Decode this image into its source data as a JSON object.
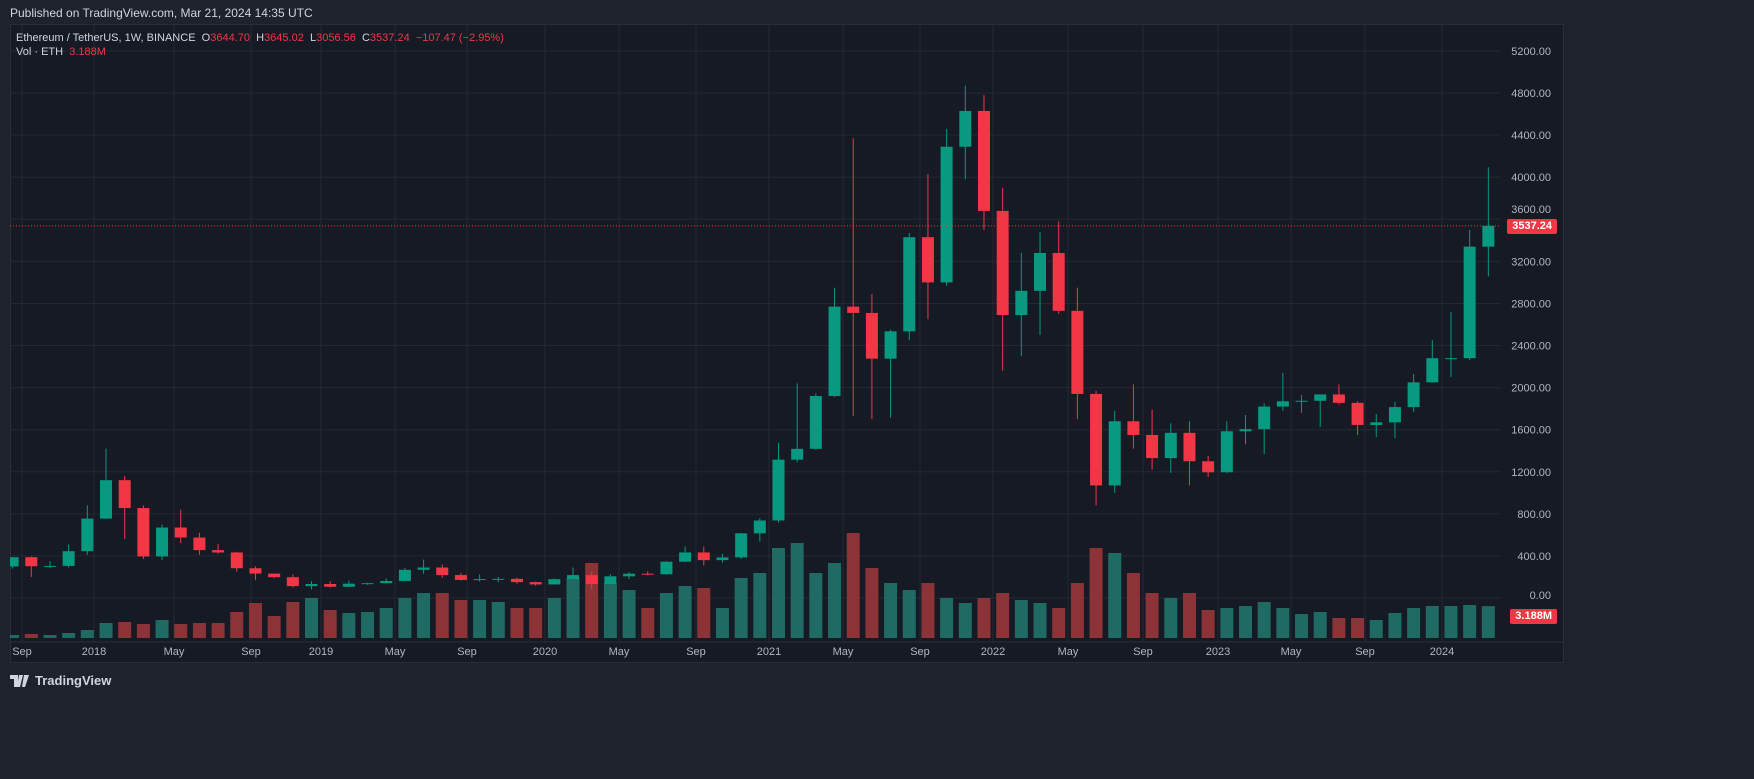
{
  "published": "Published on TradingView.com, Mar 21, 2024 14:35 UTC",
  "legend": {
    "symbol": "Ethereum / TetherUS, 1W, BINANCE",
    "o_label": "O",
    "o": "3644.70",
    "h_label": "H",
    "h": "3645.02",
    "l_label": "L",
    "l": "3056.56",
    "c_label": "C",
    "c": "3537.24",
    "change": "−107.47 (−2.95%)",
    "vol_label": "Vol · ETH",
    "vol": "3.188M"
  },
  "price_tag": "3537.24",
  "volume_tag": "3.188M",
  "footer": {
    "brand": "TradingView"
  },
  "colors": {
    "up": "#089981",
    "down": "#f23645",
    "up_vol": "#1f6b63",
    "down_vol": "#8c3338",
    "grid": "#242833",
    "background": "#161a25"
  },
  "chart_data": {
    "type": "candlestick",
    "interval_note": "approximate monthly aggregation of weekly candles",
    "y_ticks": [
      "5200.00",
      "4800.00",
      "4400.00",
      "4000.00",
      "3600.00",
      "3200.00",
      "2800.00",
      "2400.00",
      "2000.00",
      "1600.00",
      "1200.00",
      "800.00",
      "400.00",
      "0.00"
    ],
    "ylim": [
      0,
      5200
    ],
    "x_ticks": [
      "Sep",
      "2018",
      "May",
      "Sep",
      "2019",
      "May",
      "Sep",
      "2020",
      "May",
      "Sep",
      "2021",
      "May",
      "Sep",
      "2022",
      "May",
      "Sep",
      "2023",
      "May",
      "Sep",
      "2024"
    ],
    "grid": true,
    "last_price": 3537.24,
    "months": [
      "2017-08",
      "2017-09",
      "2017-10",
      "2017-11",
      "2017-12",
      "2018-01",
      "2018-02",
      "2018-03",
      "2018-04",
      "2018-05",
      "2018-06",
      "2018-07",
      "2018-08",
      "2018-09",
      "2018-10",
      "2018-11",
      "2018-12",
      "2019-01",
      "2019-02",
      "2019-03",
      "2019-04",
      "2019-05",
      "2019-06",
      "2019-07",
      "2019-08",
      "2019-09",
      "2019-10",
      "2019-11",
      "2019-12",
      "2020-01",
      "2020-02",
      "2020-03",
      "2020-04",
      "2020-05",
      "2020-06",
      "2020-07",
      "2020-08",
      "2020-09",
      "2020-10",
      "2020-11",
      "2020-12",
      "2021-01",
      "2021-02",
      "2021-03",
      "2021-04",
      "2021-05",
      "2021-06",
      "2021-07",
      "2021-08",
      "2021-09",
      "2021-10",
      "2021-11",
      "2021-12",
      "2022-01",
      "2022-02",
      "2022-03",
      "2022-04",
      "2022-05",
      "2022-06",
      "2022-07",
      "2022-08",
      "2022-09",
      "2022-10",
      "2022-11",
      "2022-12",
      "2023-01",
      "2023-02",
      "2023-03",
      "2023-04",
      "2023-05",
      "2023-06",
      "2023-07",
      "2023-08",
      "2023-09",
      "2023-10",
      "2023-11",
      "2023-12",
      "2024-01",
      "2024-02",
      "2024-03"
    ],
    "ohlc": [
      [
        300,
        390,
        280,
        388
      ],
      [
        388,
        395,
        200,
        302
      ],
      [
        302,
        350,
        285,
        305
      ],
      [
        305,
        510,
        290,
        445
      ],
      [
        445,
        880,
        410,
        755
      ],
      [
        755,
        1420,
        750,
        1120
      ],
      [
        1120,
        1160,
        560,
        855
      ],
      [
        855,
        880,
        370,
        395
      ],
      [
        395,
        700,
        360,
        670
      ],
      [
        670,
        840,
        520,
        575
      ],
      [
        575,
        620,
        410,
        455
      ],
      [
        455,
        515,
        420,
        433
      ],
      [
        433,
        440,
        250,
        283
      ],
      [
        283,
        300,
        170,
        232
      ],
      [
        232,
        235,
        190,
        198
      ],
      [
        198,
        225,
        100,
        113
      ],
      [
        113,
        160,
        82,
        133
      ],
      [
        133,
        160,
        100,
        107
      ],
      [
        107,
        165,
        102,
        136
      ],
      [
        136,
        145,
        125,
        141
      ],
      [
        141,
        185,
        140,
        162
      ],
      [
        162,
        285,
        160,
        268
      ],
      [
        268,
        365,
        230,
        290
      ],
      [
        290,
        320,
        190,
        218
      ],
      [
        218,
        240,
        165,
        172
      ],
      [
        172,
        225,
        155,
        180
      ],
      [
        180,
        200,
        150,
        182
      ],
      [
        182,
        195,
        135,
        151
      ],
      [
        151,
        155,
        117,
        129
      ],
      [
        129,
        185,
        127,
        179
      ],
      [
        179,
        290,
        180,
        218
      ],
      [
        218,
        250,
        86,
        133
      ],
      [
        133,
        227,
        130,
        206
      ],
      [
        206,
        245,
        180,
        231
      ],
      [
        231,
        255,
        215,
        226
      ],
      [
        226,
        350,
        220,
        345
      ],
      [
        345,
        490,
        340,
        433
      ],
      [
        433,
        490,
        310,
        360
      ],
      [
        360,
        420,
        335,
        386
      ],
      [
        386,
        620,
        370,
        615
      ],
      [
        615,
        760,
        535,
        737
      ],
      [
        737,
        1475,
        715,
        1315
      ],
      [
        1315,
        2040,
        1290,
        1418
      ],
      [
        1418,
        1945,
        1410,
        1920
      ],
      [
        1920,
        2950,
        1910,
        2770
      ],
      [
        2770,
        4370,
        1730,
        2710
      ],
      [
        2710,
        2890,
        1700,
        2275
      ],
      [
        2275,
        2550,
        1715,
        2535
      ],
      [
        2535,
        3470,
        2450,
        3430
      ],
      [
        3430,
        4030,
        2650,
        3000
      ],
      [
        3000,
        4460,
        2970,
        4290
      ],
      [
        4290,
        4870,
        3980,
        4630
      ],
      [
        4630,
        4780,
        3500,
        3680
      ],
      [
        3680,
        3900,
        2160,
        2690
      ],
      [
        2690,
        3280,
        2300,
        2920
      ],
      [
        2920,
        3480,
        2500,
        3280
      ],
      [
        3280,
        3580,
        2700,
        2730
      ],
      [
        2730,
        2950,
        1700,
        1940
      ],
      [
        1940,
        1970,
        880,
        1070
      ],
      [
        1070,
        1780,
        1000,
        1680
      ],
      [
        1680,
        2030,
        1420,
        1550
      ],
      [
        1550,
        1790,
        1220,
        1330
      ],
      [
        1330,
        1660,
        1190,
        1570
      ],
      [
        1570,
        1680,
        1070,
        1300
      ],
      [
        1300,
        1350,
        1150,
        1195
      ],
      [
        1195,
        1680,
        1190,
        1585
      ],
      [
        1585,
        1740,
        1460,
        1605
      ],
      [
        1605,
        1850,
        1370,
        1820
      ],
      [
        1820,
        2140,
        1780,
        1870
      ],
      [
        1870,
        1930,
        1760,
        1875
      ],
      [
        1875,
        1930,
        1625,
        1935
      ],
      [
        1935,
        2030,
        1840,
        1855
      ],
      [
        1855,
        1870,
        1550,
        1645
      ],
      [
        1645,
        1750,
        1530,
        1670
      ],
      [
        1670,
        1865,
        1520,
        1815
      ],
      [
        1815,
        2130,
        1770,
        2050
      ],
      [
        2050,
        2450,
        2050,
        2280
      ],
      [
        2280,
        2720,
        2100,
        2280
      ],
      [
        2280,
        3500,
        2260,
        3340
      ],
      [
        3340,
        4095,
        3056,
        3537.24
      ]
    ],
    "volume_m": [
      0.3,
      0.4,
      0.3,
      0.5,
      0.8,
      1.5,
      1.6,
      1.4,
      1.8,
      1.4,
      1.5,
      1.5,
      2.6,
      3.5,
      2.2,
      3.6,
      4.0,
      2.8,
      2.5,
      2.6,
      3.0,
      4.0,
      4.5,
      4.5,
      3.8,
      3.8,
      3.6,
      3.0,
      3.0,
      4.0,
      6.0,
      7.5,
      5.5,
      4.8,
      3.0,
      4.5,
      5.2,
      5.0,
      3.0,
      6.0,
      6.5,
      9.0,
      9.5,
      6.5,
      7.5,
      10.5,
      7.0,
      5.5,
      4.8,
      5.5,
      4.0,
      3.5,
      4.0,
      4.5,
      3.8,
      3.5,
      3.0,
      5.5,
      9.0,
      8.5,
      6.5,
      4.5,
      4.0,
      4.5,
      2.8,
      3.0,
      3.2,
      3.6,
      3.0,
      2.4,
      2.6,
      2.0,
      2.0,
      1.8,
      2.5,
      3.0,
      3.2,
      3.2,
      3.3,
      3.188
    ]
  }
}
